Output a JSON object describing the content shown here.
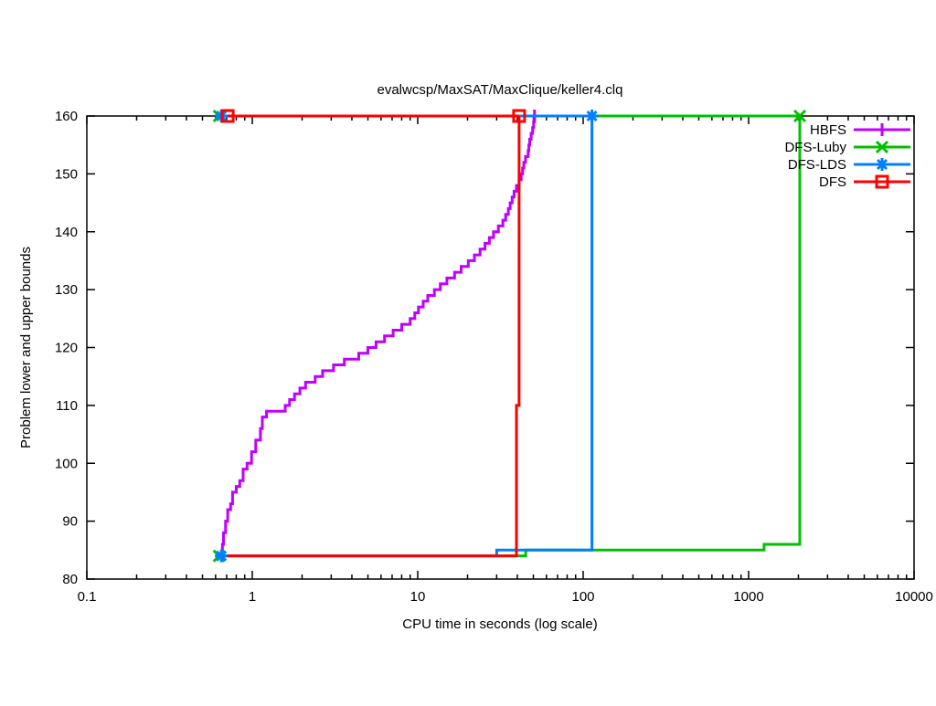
{
  "chart_data": {
    "type": "line",
    "title": "evalwcsp/MaxSAT/MaxClique/keller4.clq",
    "xlabel": "CPU time in seconds (log scale)",
    "ylabel": "Problem lower and upper bounds",
    "x_scale": "log",
    "xlim": [
      0.1,
      10000
    ],
    "ylim": [
      80,
      160
    ],
    "x_ticks": [
      0.1,
      1,
      10,
      100,
      1000,
      10000
    ],
    "x_tick_labels": [
      "0.1",
      "1",
      "10",
      "100",
      "1000",
      "10000"
    ],
    "y_ticks": [
      80,
      90,
      100,
      110,
      120,
      130,
      140,
      150,
      160
    ],
    "y_tick_labels": [
      "80",
      "90",
      "100",
      "110",
      "120",
      "130",
      "140",
      "150",
      "160"
    ],
    "grid": false,
    "legend_position": "top-right-inside",
    "axis_color": "#000000",
    "background_color": "#ffffff",
    "series": [
      {
        "name": "HBFS",
        "color": "#c000ff",
        "marker": "plus",
        "upper_bound": [
          [
            0.65,
            160
          ],
          [
            50.8,
            160
          ]
        ],
        "lower_bound": [
          [
            0.65,
            84
          ],
          [
            0.66,
            86
          ],
          [
            0.67,
            88
          ],
          [
            0.69,
            90
          ],
          [
            0.71,
            92
          ],
          [
            0.74,
            93
          ],
          [
            0.76,
            95
          ],
          [
            0.8,
            96
          ],
          [
            0.84,
            97
          ],
          [
            0.88,
            99
          ],
          [
            0.93,
            100
          ],
          [
            0.99,
            102
          ],
          [
            1.05,
            104
          ],
          [
            1.12,
            106
          ],
          [
            1.15,
            108
          ],
          [
            1.22,
            109
          ],
          [
            1.58,
            110
          ],
          [
            1.68,
            111
          ],
          [
            1.8,
            112
          ],
          [
            1.94,
            113
          ],
          [
            2.1,
            114
          ],
          [
            2.4,
            115
          ],
          [
            2.66,
            116
          ],
          [
            3.1,
            117
          ],
          [
            3.6,
            118
          ],
          [
            4.4,
            119
          ],
          [
            5.0,
            120
          ],
          [
            5.6,
            121
          ],
          [
            6.3,
            122
          ],
          [
            7.1,
            123
          ],
          [
            8.0,
            124
          ],
          [
            9.0,
            125
          ],
          [
            9.6,
            126
          ],
          [
            10.1,
            127
          ],
          [
            10.8,
            128
          ],
          [
            11.5,
            129
          ],
          [
            12.6,
            130
          ],
          [
            13.7,
            131
          ],
          [
            15.0,
            132
          ],
          [
            16.7,
            133
          ],
          [
            18.3,
            134
          ],
          [
            20.2,
            135
          ],
          [
            22.0,
            136
          ],
          [
            23.8,
            137
          ],
          [
            25.5,
            138
          ],
          [
            27.1,
            139
          ],
          [
            28.7,
            140
          ],
          [
            30.7,
            141
          ],
          [
            32.7,
            142
          ],
          [
            34.0,
            143
          ],
          [
            35.3,
            144
          ],
          [
            36.2,
            145
          ],
          [
            37.2,
            146
          ],
          [
            38.2,
            147
          ],
          [
            39.5,
            148
          ],
          [
            41.0,
            149
          ],
          [
            42.2,
            150
          ],
          [
            43.0,
            151
          ],
          [
            43.8,
            152
          ],
          [
            44.8,
            153
          ],
          [
            46.5,
            154
          ],
          [
            47.0,
            155
          ],
          [
            47.5,
            156
          ],
          [
            48.5,
            157
          ],
          [
            49.5,
            158
          ],
          [
            50.2,
            159
          ],
          [
            50.8,
            160
          ]
        ],
        "markers_at": [
          [
            50.8,
            160
          ]
        ]
      },
      {
        "name": "DFS-Luby",
        "color": "#00c000",
        "marker": "cross",
        "upper_bound": [
          [
            0.63,
            160
          ],
          [
            2040,
            160
          ]
        ],
        "lower_bound": [
          [
            0.63,
            84
          ],
          [
            45,
            85
          ],
          [
            1240,
            86
          ],
          [
            2040,
            160
          ]
        ],
        "markers_at": [
          [
            0.63,
            160
          ],
          [
            0.63,
            84
          ],
          [
            2040,
            160
          ]
        ]
      },
      {
        "name": "DFS-LDS",
        "color": "#0080ff",
        "marker": "asterisk",
        "upper_bound": [
          [
            0.65,
            160
          ],
          [
            113,
            160
          ]
        ],
        "lower_bound": [
          [
            0.65,
            84
          ],
          [
            30,
            85
          ],
          [
            113,
            160
          ]
        ],
        "markers_at": [
          [
            0.65,
            160
          ],
          [
            0.65,
            84
          ],
          [
            113,
            160
          ]
        ]
      },
      {
        "name": "DFS",
        "color": "#ff0000",
        "marker": "square",
        "upper_bound": [
          [
            0.71,
            160
          ],
          [
            41,
            160
          ]
        ],
        "lower_bound": [
          [
            0.71,
            84
          ],
          [
            39.5,
            110
          ],
          [
            41,
            160
          ]
        ],
        "markers_at": [
          [
            0.71,
            160
          ],
          [
            41,
            160
          ]
        ]
      }
    ]
  }
}
